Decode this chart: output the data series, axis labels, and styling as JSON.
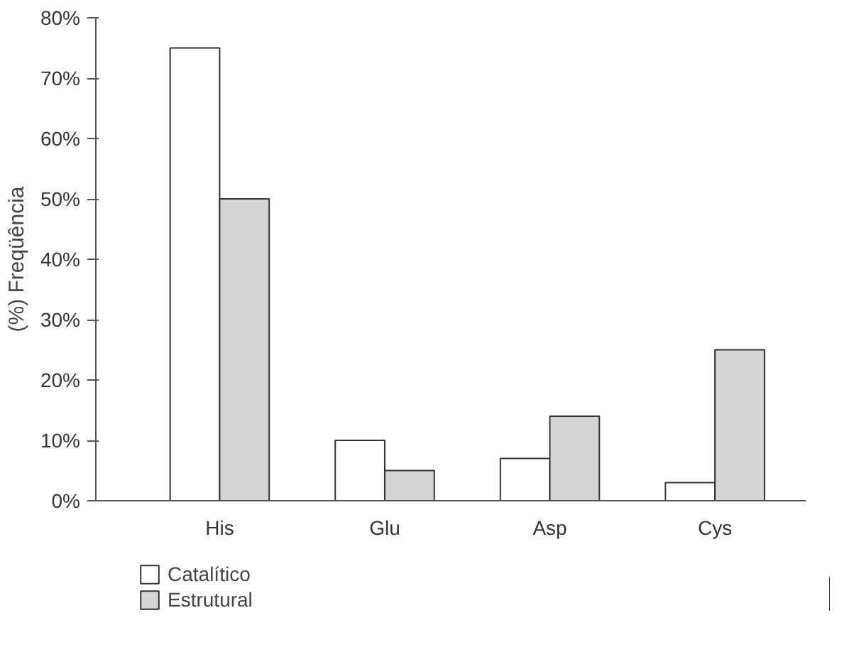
{
  "chart_data": {
    "type": "bar",
    "ylabel": "(%) Freqüência",
    "categories": [
      "His",
      "Glu",
      "Asp",
      "Cys"
    ],
    "series": [
      {
        "name": "Catalítico",
        "color": "#ffffff",
        "values": [
          75,
          10,
          7,
          3
        ]
      },
      {
        "name": "Estrutural",
        "color": "#d4d4d4",
        "values": [
          50,
          5,
          14,
          25
        ]
      }
    ],
    "ylim": [
      0,
      80
    ],
    "yticks": [
      {
        "value": 0,
        "label": "0%"
      },
      {
        "value": 10,
        "label": "10%"
      },
      {
        "value": 20,
        "label": "20%"
      },
      {
        "value": 30,
        "label": "30%"
      },
      {
        "value": 40,
        "label": "40%"
      },
      {
        "value": 50,
        "label": "50%"
      },
      {
        "value": 60,
        "label": "60%"
      },
      {
        "value": 70,
        "label": "70%"
      },
      {
        "value": 80,
        "label": "80%"
      }
    ],
    "grid": false,
    "legend": "bottom left"
  }
}
